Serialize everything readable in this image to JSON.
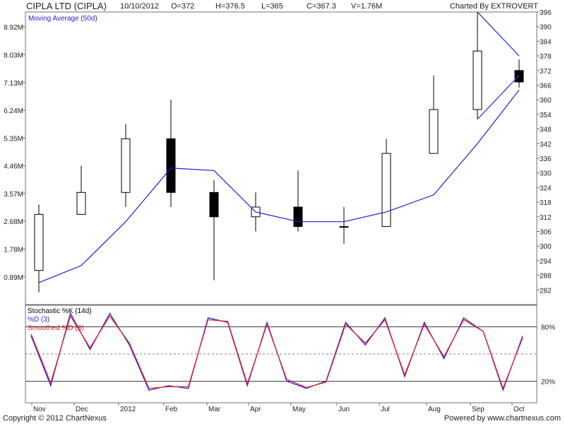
{
  "header": {
    "title": "CIPLA LTD (CIPLA)",
    "date": "10/10/2012",
    "open": "O=372",
    "high": "H=376.5",
    "low": "L=365",
    "close": "C=367.3",
    "volume": "V=1.76M",
    "charted_by": "Charted By EXTROVERT"
  },
  "footer": {
    "copyright": "Copyright © 2012 ChartNexus",
    "powered_by": "Powered by www.chartnexus.com"
  },
  "colors": {
    "up_candle": "#ffffff",
    "down_candle": "#000000",
    "moving_average": "#1f1fcf",
    "trendline": "#2a3fd6",
    "volume_up": "#a3b88c",
    "volume_down": "#c9a392",
    "percent_k": "#555555",
    "percent_d": "#2a2ae6",
    "smoothed_d": "#e0202a"
  },
  "chart_data": [
    {
      "type": "candlestick",
      "title": "CIPLA LTD (CIPLA)",
      "legend": [
        "Moving Average (50d)"
      ],
      "price_ylim": [
        276,
        396
      ],
      "price_ticks": [
        282,
        288,
        294,
        300,
        306,
        312,
        318,
        324,
        330,
        336,
        342,
        348,
        354,
        360,
        366,
        372,
        378,
        384,
        390,
        396
      ],
      "volume_ticks": [
        "0.89M",
        "1.78M",
        "2.68M",
        "3.57M",
        "4.46M",
        "5.35M",
        "6.24M",
        "7.13M",
        "8.03M",
        "8.92M"
      ],
      "volume_ylim_millions": [
        0,
        9.4
      ],
      "x_labels": [
        "Nov",
        "Dec",
        "2012",
        "Feb",
        "Mar",
        "Apr",
        "May",
        "Jun",
        "Jul",
        "Aug",
        "Sep",
        "Oct"
      ],
      "monthly_ohlc": [
        {
          "month": "Nov",
          "open": 290,
          "high": 317,
          "low": 281,
          "close": 313
        },
        {
          "month": "Dec",
          "open": 313,
          "high": 333,
          "low": 316,
          "close": 322
        },
        {
          "month": "2012",
          "open": 322,
          "high": 350,
          "low": 316,
          "close": 344
        },
        {
          "month": "Feb",
          "open": 344,
          "high": 360,
          "low": 316,
          "close": 322
        },
        {
          "month": "Mar",
          "open": 322,
          "high": 327,
          "low": 286,
          "close": 312
        },
        {
          "month": "Apr",
          "open": 312,
          "high": 322,
          "low": 306,
          "close": 316
        },
        {
          "month": "May",
          "open": 316,
          "high": 331,
          "low": 306,
          "close": 308
        },
        {
          "month": "Jun",
          "open": 308,
          "high": 316,
          "low": 301,
          "close": 308
        },
        {
          "month": "Jul",
          "open": 308,
          "high": 344,
          "low": 308,
          "close": 338
        },
        {
          "month": "Aug",
          "open": 338,
          "high": 370,
          "low": 338,
          "close": 356
        },
        {
          "month": "Sep",
          "open": 356,
          "high": 396,
          "low": 352,
          "close": 380
        },
        {
          "month": "Oct",
          "open": 372,
          "high": 376.5,
          "low": 365,
          "close": 367.3
        }
      ],
      "moving_average_50d": [
        {
          "month": "Nov",
          "value": 285
        },
        {
          "month": "Dec",
          "value": 292
        },
        {
          "month": "2012",
          "value": 310
        },
        {
          "month": "Feb",
          "value": 332
        },
        {
          "month": "Mar",
          "value": 331
        },
        {
          "month": "Apr",
          "value": 314
        },
        {
          "month": "May",
          "value": 310
        },
        {
          "month": "Jun",
          "value": 310
        },
        {
          "month": "Jul",
          "value": 314
        },
        {
          "month": "Aug",
          "value": 321
        },
        {
          "month": "Sep",
          "value": 342
        },
        {
          "month": "Oct",
          "value": 364
        }
      ],
      "trendlines": [
        {
          "from": {
            "month": "Sep",
            "price": 396
          },
          "to": {
            "month": "Oct",
            "price": 378
          }
        },
        {
          "from": {
            "month": "Sep",
            "price": 352
          },
          "to": {
            "month": "Oct",
            "price": 370
          }
        }
      ]
    },
    {
      "type": "line",
      "title": "Stochastic %K (14d)",
      "legend": [
        "%D (3)",
        "Smoothed %D (3)"
      ],
      "ylim": [
        0,
        100
      ],
      "reference_lines": [
        20,
        80
      ],
      "y_labels": [
        "80%",
        "20%"
      ],
      "x_labels": [
        "Nov",
        "Dec",
        "2012",
        "Feb",
        "Mar",
        "Apr",
        "May",
        "Jun",
        "Jul",
        "Aug",
        "Sep",
        "Oct"
      ],
      "series": [
        {
          "name": "%D (3)",
          "values": [
            70,
            15,
            95,
            55,
            95,
            60,
            10,
            15,
            12,
            90,
            85,
            15,
            85,
            20,
            12,
            20,
            85,
            60,
            90,
            25,
            85,
            45,
            90,
            75,
            10,
            70
          ]
        },
        {
          "name": "Smoothed %D (3)",
          "values": [
            72,
            18,
            92,
            57,
            92,
            62,
            12,
            14,
            14,
            88,
            86,
            17,
            83,
            22,
            13,
            19,
            83,
            62,
            88,
            27,
            83,
            47,
            88,
            75,
            12,
            68
          ]
        }
      ]
    }
  ]
}
